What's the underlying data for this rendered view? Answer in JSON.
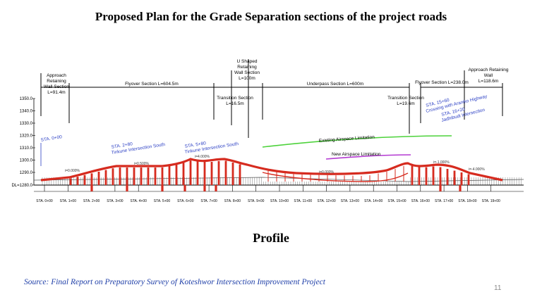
{
  "slide": {
    "title": "Proposed Plan for the Grade Separation sections of the project roads",
    "caption": "Profile",
    "source": "Source: Final Report on Preparatory Survey  of Koteshwor Intersection Improvement Project",
    "page_number": "11"
  },
  "sections": [
    {
      "text": "Approach",
      "text2": "Retaining",
      "text3": "Wall Section",
      "text4": "L=91.4m"
    },
    {
      "text": "Flyover Section L=604.5m"
    },
    {
      "text": "Transition Section",
      "text2": "L=16.5m"
    },
    {
      "text": "U Shaped",
      "text2": "Retaining",
      "text3": "Wall Section",
      "text4": "L=100m"
    },
    {
      "text": "Underpass Section L=600m"
    },
    {
      "text": "Transition Section",
      "text2": "L=19.6m"
    },
    {
      "text": "Flyover Section L=238.0m"
    },
    {
      "text": "Approach Retaining",
      "text2": "Wall",
      "text3": "L=118.6m"
    }
  ],
  "elevations": [
    "1350.0",
    "1340.0",
    "1330.0",
    "1320.0",
    "1310.0",
    "1300.0",
    "1290.0",
    "DL=1280.0"
  ],
  "stations": [
    "STA. 0+00",
    "STA. 1+00",
    "STA. 2+00",
    "STA. 3+00",
    "STA. 4+00",
    "STA. 5+00",
    "STA. 6+00",
    "STA. 7+00",
    "STA. 8+00",
    "STA. 9+00",
    "STA. 10+00",
    "STA. 11+00",
    "STA. 12+00",
    "STA. 13+00",
    "STA. 14+00",
    "STA. 15+00",
    "STA. 16+00",
    "STA. 17+00",
    "STA. 18+00",
    "STA. 19+00"
  ],
  "annotations": {
    "sta_0": "STA. 0+00",
    "sta_280_a": "STA. 2+80",
    "sta_280_b": "Tinkune Intersection South",
    "sta_580_a": "STA. 5+80",
    "sta_580_b": "Tinkune Intersection South",
    "sta_1560_a": "STA. 15+60",
    "sta_1560_b": "Crossing with Araniko Highway",
    "sta_1620_a": "STA. 16+20",
    "sta_1620_b": "Jadhibudi Intersection",
    "existing_airspace": "Existing Airspace Limitation",
    "new_airspace": "New Airspace Limitation",
    "grade_1": "i=0.000%",
    "grade_2": "i=0.500%",
    "grade_3": "i=4.000%",
    "grade_4": "i=-1.000%",
    "grade_5": "i=-4.000%",
    "grade_6": "i=0.000%"
  },
  "colors": {
    "road": "#d62b1f",
    "pier": "#d62b1f",
    "annotation_blue": "#2b3fc4",
    "existing_airspace": "#4cd23a",
    "new_airspace": "#b43ad2",
    "ground_hatch": "#7a7a7a"
  }
}
